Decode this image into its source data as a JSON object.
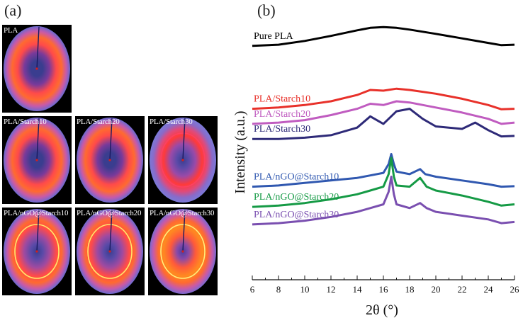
{
  "panel_a": {
    "label": "(a)",
    "tiles": [
      {
        "label": "PLA",
        "variant": "amorphous"
      },
      {
        "label": "PLA/Starch10",
        "variant": "amorphous"
      },
      {
        "label": "PLA/Starch20",
        "variant": "amorphous"
      },
      {
        "label": "PLA/Starch30",
        "variant": "starch30"
      },
      {
        "label": "PLA/nGO@Starch10",
        "variant": "crystalline"
      },
      {
        "label": "PLA/nGO@Starch20",
        "variant": "crystalline"
      },
      {
        "label": "PLA/nGO@Starch30",
        "variant": "crystalline-bright"
      }
    ]
  },
  "panel_b": {
    "label": "(b)"
  },
  "chart_data": {
    "type": "line",
    "title": "",
    "xlabel": "2θ (°)",
    "ylabel": "Intensity (a.u.)",
    "xlim": [
      6,
      26
    ],
    "x_ticks": [
      6,
      8,
      10,
      12,
      14,
      16,
      18,
      20,
      22,
      24,
      26
    ],
    "y_ticks_shown": false,
    "ylim_relative": [
      0,
      10
    ],
    "series": [
      {
        "name": "Pure PLA",
        "color": "#000000",
        "points": [
          [
            6,
            9.3
          ],
          [
            8,
            9.35
          ],
          [
            10,
            9.5
          ],
          [
            12,
            9.7
          ],
          [
            14,
            9.92
          ],
          [
            15,
            10.02
          ],
          [
            16,
            10.05
          ],
          [
            17,
            10.02
          ],
          [
            18,
            9.95
          ],
          [
            20,
            9.78
          ],
          [
            22,
            9.6
          ],
          [
            24,
            9.42
          ],
          [
            25,
            9.33
          ],
          [
            26,
            9.35
          ]
        ]
      },
      {
        "name": "PLA/Starch10",
        "color": "#e8312a",
        "points": [
          [
            6,
            6.8
          ],
          [
            8,
            6.85
          ],
          [
            10,
            6.95
          ],
          [
            12,
            7.1
          ],
          [
            14,
            7.35
          ],
          [
            15,
            7.55
          ],
          [
            16,
            7.52
          ],
          [
            17,
            7.6
          ],
          [
            18,
            7.55
          ],
          [
            20,
            7.4
          ],
          [
            22,
            7.2
          ],
          [
            24,
            6.95
          ],
          [
            25,
            6.78
          ],
          [
            26,
            6.8
          ]
        ]
      },
      {
        "name": "PLA/Starch20",
        "color": "#c05cc0",
        "points": [
          [
            6,
            6.2
          ],
          [
            8,
            6.25
          ],
          [
            10,
            6.35
          ],
          [
            12,
            6.55
          ],
          [
            14,
            6.8
          ],
          [
            15,
            7.0
          ],
          [
            16,
            6.95
          ],
          [
            17,
            7.1
          ],
          [
            18,
            7.05
          ],
          [
            20,
            6.85
          ],
          [
            22,
            6.65
          ],
          [
            24,
            6.4
          ],
          [
            25,
            6.2
          ],
          [
            26,
            6.25
          ]
        ]
      },
      {
        "name": "PLA/Starch30",
        "color": "#2e2a78",
        "points": [
          [
            6,
            5.6
          ],
          [
            8,
            5.6
          ],
          [
            10,
            5.65
          ],
          [
            12,
            5.75
          ],
          [
            14,
            6.05
          ],
          [
            15,
            6.5
          ],
          [
            16,
            6.2
          ],
          [
            17,
            6.7
          ],
          [
            18,
            6.8
          ],
          [
            19,
            6.4
          ],
          [
            20,
            6.1
          ],
          [
            22,
            6.0
          ],
          [
            23,
            6.25
          ],
          [
            24,
            5.95
          ],
          [
            25,
            5.7
          ],
          [
            26,
            5.72
          ]
        ]
      },
      {
        "name": "PLA/nGO@Starch10",
        "color": "#3058b0",
        "points": [
          [
            6,
            3.7
          ],
          [
            8,
            3.75
          ],
          [
            10,
            3.85
          ],
          [
            12,
            3.95
          ],
          [
            14,
            4.05
          ],
          [
            15,
            4.15
          ],
          [
            16,
            4.25
          ],
          [
            16.4,
            4.6
          ],
          [
            16.6,
            5.0
          ],
          [
            16.8,
            4.6
          ],
          [
            17,
            4.3
          ],
          [
            18,
            4.2
          ],
          [
            18.8,
            4.4
          ],
          [
            19.2,
            4.2
          ],
          [
            20,
            4.1
          ],
          [
            22,
            3.95
          ],
          [
            24,
            3.8
          ],
          [
            25,
            3.7
          ],
          [
            26,
            3.72
          ]
        ]
      },
      {
        "name": "PLA/nGO@Starch20",
        "color": "#159a45",
        "points": [
          [
            6,
            2.9
          ],
          [
            8,
            2.95
          ],
          [
            10,
            3.05
          ],
          [
            12,
            3.2
          ],
          [
            14,
            3.4
          ],
          [
            15,
            3.55
          ],
          [
            16,
            3.7
          ],
          [
            16.4,
            4.2
          ],
          [
            16.6,
            4.85
          ],
          [
            16.8,
            4.1
          ],
          [
            17,
            3.75
          ],
          [
            18,
            3.7
          ],
          [
            18.8,
            4.05
          ],
          [
            19.3,
            3.7
          ],
          [
            20,
            3.55
          ],
          [
            22,
            3.35
          ],
          [
            24,
            3.1
          ],
          [
            25,
            2.95
          ],
          [
            26,
            3.0
          ]
        ]
      },
      {
        "name": "PLA/nGO@Starch30",
        "color": "#7a4fb0",
        "points": [
          [
            6,
            2.2
          ],
          [
            8,
            2.25
          ],
          [
            10,
            2.35
          ],
          [
            12,
            2.5
          ],
          [
            14,
            2.7
          ],
          [
            15,
            2.85
          ],
          [
            16,
            3.0
          ],
          [
            16.4,
            3.5
          ],
          [
            16.6,
            4.1
          ],
          [
            16.8,
            3.4
          ],
          [
            17,
            3.0
          ],
          [
            18,
            2.85
          ],
          [
            18.8,
            3.05
          ],
          [
            19.3,
            2.85
          ],
          [
            20,
            2.7
          ],
          [
            22,
            2.55
          ],
          [
            24,
            2.4
          ],
          [
            25,
            2.25
          ],
          [
            26,
            2.3
          ]
        ]
      }
    ]
  }
}
